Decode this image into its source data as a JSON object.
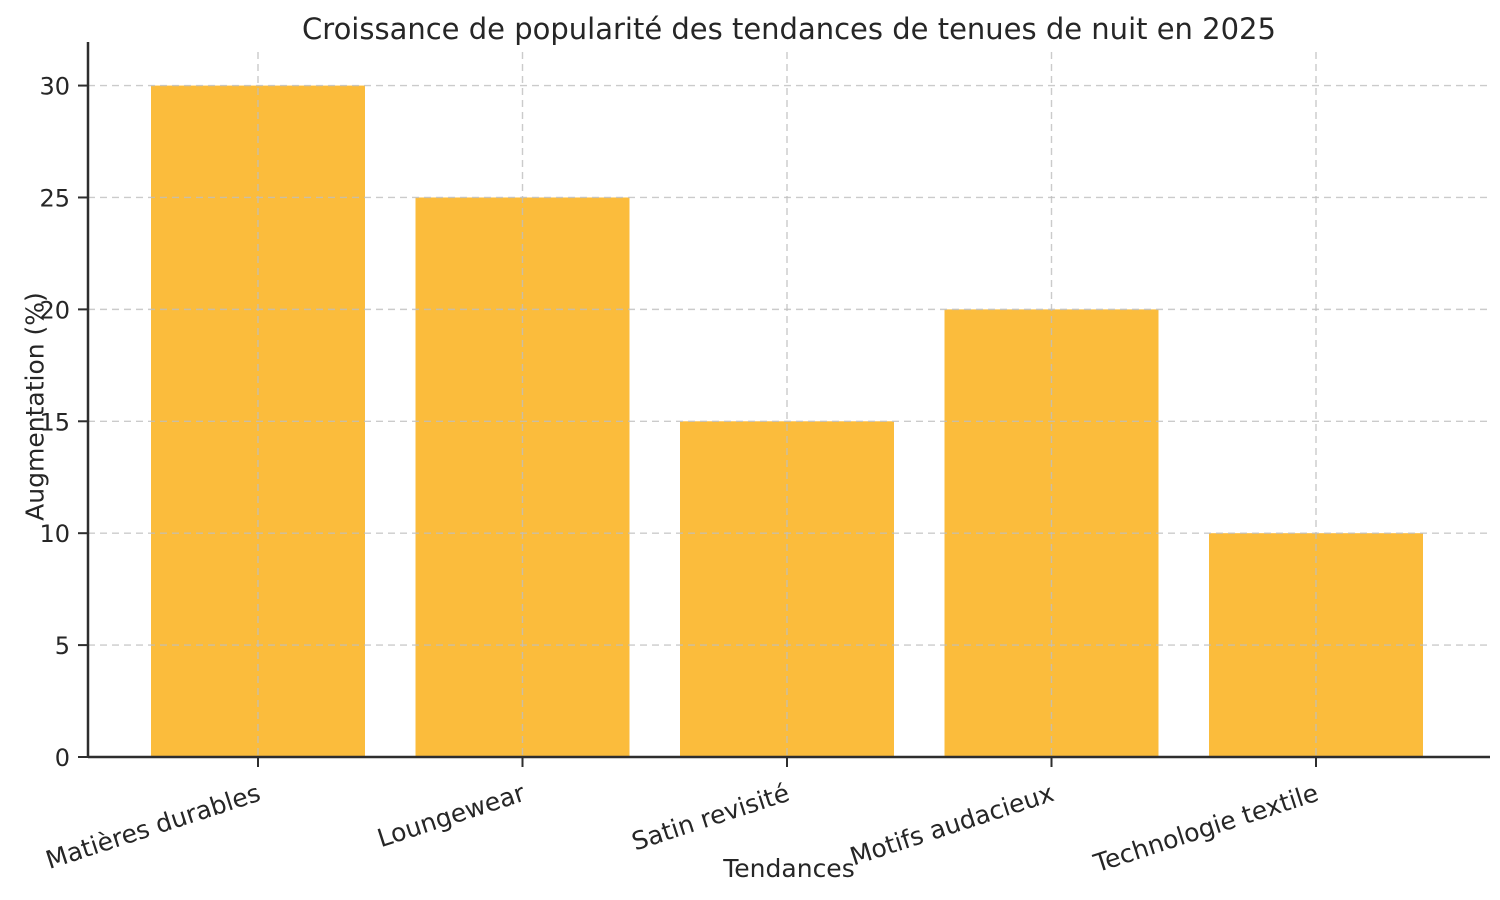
{
  "figure": {
    "background": "#ffffff"
  },
  "chart_data": {
    "type": "bar",
    "title": "Croissance de popularité des tendances de tenues de nuit en 2025",
    "xlabel": "Tendances",
    "ylabel": "Augmentation (%)",
    "categories": [
      "Matières durables",
      "Loungewear",
      "Satin revisité",
      "Motifs audacieux",
      "Technologie textile"
    ],
    "values": [
      30,
      25,
      15,
      20,
      10
    ],
    "yticks": [
      0,
      5,
      10,
      15,
      20,
      25,
      30
    ],
    "ylim": [
      0,
      31.5
    ],
    "bar_color": "#FBBC3C",
    "grid": true,
    "gridline_style": "dashed",
    "grid_color": "#bfbfbf",
    "axis_color": "#2e2e2e",
    "text_color": "#262626",
    "xtick_rotation_deg": 18,
    "legend_visible": false
  }
}
